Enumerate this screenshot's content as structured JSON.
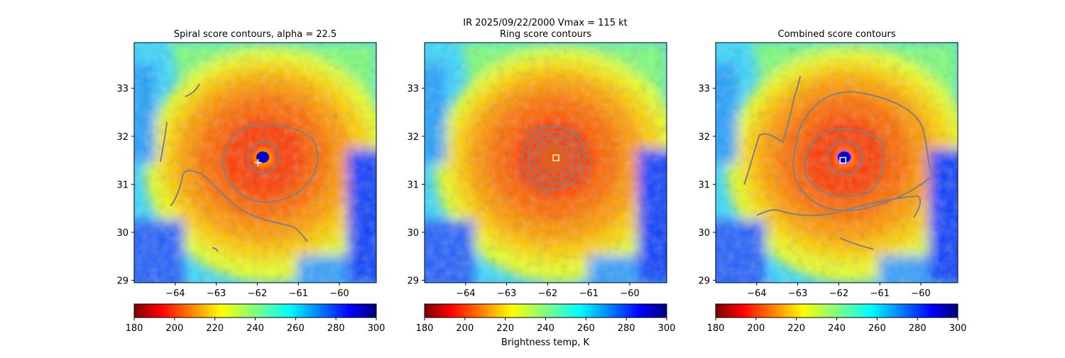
{
  "suptitle": "IR  2025/09/22/2000    Vmax = 115 kt",
  "colorbar_label": "Brightness temp, K",
  "panels": [
    {
      "title": "Spiral score contours, alpha = 22.5"
    },
    {
      "title": "Ring score contours"
    },
    {
      "title": "Combined score contours"
    }
  ],
  "chart_data": {
    "type": "heatmap",
    "title": "IR  2025/09/22/2000    Vmax = 115 kt",
    "colormap": "jet_r",
    "colorbar": {
      "label": "Brightness temp, K",
      "range": [
        180,
        300
      ],
      "ticks": [
        180,
        200,
        220,
        240,
        260,
        280,
        300
      ]
    },
    "x_ticks": [
      -64,
      -63,
      -62,
      -61,
      -60
    ],
    "y_ticks": [
      29,
      30,
      31,
      32,
      33
    ],
    "xlim": [
      -65.0,
      -59.1
    ],
    "ylim": [
      28.95,
      33.95
    ],
    "storm_center": {
      "lon": -61.85,
      "lat": 31.55
    },
    "eye_temp_K": 285,
    "eyewall_temp_K": 198,
    "panels": [
      {
        "title": "Spiral score contours, alpha = 22.5",
        "marker": "plus",
        "marker_lon": -61.98,
        "marker_lat": 31.45
      },
      {
        "title": "Ring score contours",
        "marker": "square",
        "marker_lon": -61.8,
        "marker_lat": 31.55
      },
      {
        "title": "Combined score contours",
        "marker": "square",
        "marker_lon": -61.9,
        "marker_lat": 31.5
      }
    ],
    "contour_color": "#808080",
    "marker_color": "#ffffff",
    "accent_colors": {
      "magenta_ring": "#e040ff",
      "eye_blue": "#0000cc"
    }
  }
}
